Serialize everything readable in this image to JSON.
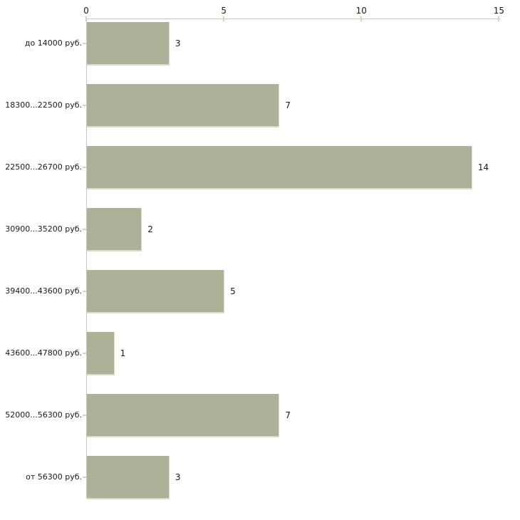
{
  "chart_data": {
    "type": "bar",
    "orientation": "horizontal",
    "title": "",
    "xlabel": "",
    "ylabel": "",
    "categories": [
      "до 14000 руб.",
      "18300...22500 руб.",
      "22500...26700 руб.",
      "30900...35200 руб.",
      "39400...43600 руб.",
      "43600...47800 руб.",
      "52000...56300 руб.",
      "от 56300 руб."
    ],
    "values": [
      3,
      7,
      14,
      2,
      5,
      1,
      7,
      3
    ],
    "value_labels": [
      "3",
      "7",
      "14",
      "2",
      "5",
      "1",
      "7",
      "3"
    ],
    "value_axis": {
      "position": "top",
      "min": 0,
      "max": 15,
      "ticks": [
        0,
        5,
        10,
        15
      ]
    },
    "grid": false,
    "legend": false,
    "colors": {
      "background": "#ffffff",
      "bar_fill": "#abb297",
      "bar_edge": "#d9dcc8",
      "axis_line": "#c6c6c6",
      "tick_mark": "#d4d7b5",
      "text": "#1a1a1a"
    }
  }
}
